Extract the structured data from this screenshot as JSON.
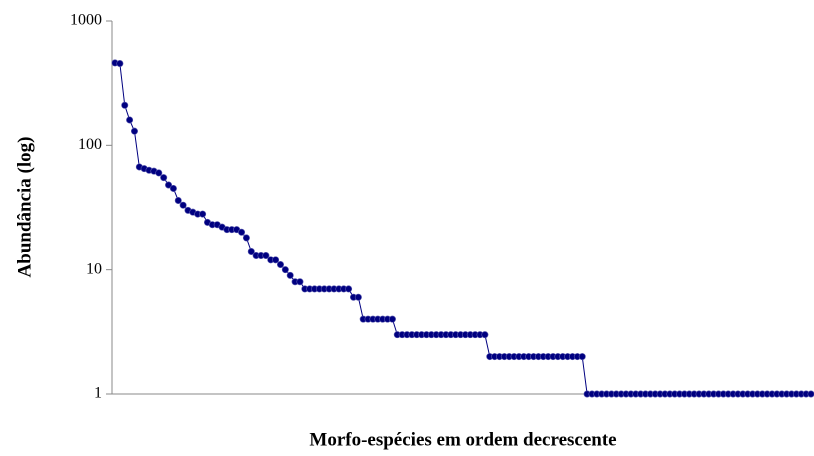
{
  "chart_data": {
    "type": "line",
    "y_label": "Abundância (log)",
    "x_label": "Morfo-espécies em ordem decrescente",
    "log_y": true,
    "ylim": [
      1,
      1000
    ],
    "yticks": [
      1,
      10,
      100,
      1000
    ],
    "grid": false,
    "categories": [
      null,
      null,
      null,
      null,
      null,
      null,
      null,
      null,
      null,
      null,
      null,
      null,
      null,
      null,
      null,
      null,
      null,
      null,
      null,
      null,
      null,
      null,
      null,
      null,
      null,
      null,
      null,
      null,
      null,
      null,
      null,
      null,
      null,
      null,
      null,
      null,
      null,
      null,
      null,
      null,
      null,
      null,
      null,
      null,
      null,
      null,
      null,
      null,
      null,
      null,
      null,
      null,
      null,
      null,
      null,
      null,
      null,
      null,
      null,
      null,
      null,
      null,
      null,
      null,
      null,
      null,
      null,
      null,
      null,
      null,
      null,
      null,
      null,
      null,
      null,
      null,
      null,
      null,
      null,
      null,
      null,
      null,
      null,
      null,
      null,
      null,
      null,
      null,
      null,
      null,
      null,
      null,
      null,
      null,
      null,
      null,
      null,
      null,
      null,
      null,
      null,
      null,
      null,
      null,
      null,
      null,
      null,
      null,
      null,
      null,
      null,
      null,
      null,
      null,
      null,
      null,
      null,
      null,
      null,
      null,
      null,
      null,
      null,
      null,
      null,
      null,
      null,
      null,
      null,
      null,
      null,
      null,
      null,
      null,
      null,
      null,
      null,
      null,
      null,
      null,
      null,
      null,
      null,
      null
    ],
    "series": [
      {
        "color": "#000080",
        "values": [
          460,
          455,
          210,
          160,
          130,
          67,
          65,
          63,
          62,
          60,
          55,
          48,
          45,
          36,
          33,
          30,
          29,
          28,
          28,
          24,
          23,
          23,
          22,
          21,
          21,
          21,
          20,
          18,
          14,
          13,
          13,
          13,
          12,
          12,
          11,
          10,
          9,
          8,
          8,
          7,
          7,
          7,
          7,
          7,
          7,
          7,
          7,
          7,
          7,
          6,
          6,
          4,
          4,
          4,
          4,
          4,
          4,
          4,
          3,
          3,
          3,
          3,
          3,
          3,
          3,
          3,
          3,
          3,
          3,
          3,
          3,
          3,
          3,
          3,
          3,
          3,
          3,
          2,
          2,
          2,
          2,
          2,
          2,
          2,
          2,
          2,
          2,
          2,
          2,
          2,
          2,
          2,
          2,
          2,
          2,
          2,
          2,
          1,
          1,
          1,
          1,
          1,
          1,
          1,
          1,
          1,
          1,
          1,
          1,
          1,
          1,
          1,
          1,
          1,
          1,
          1,
          1,
          1,
          1,
          1,
          1,
          1,
          1,
          1,
          1,
          1,
          1,
          1,
          1,
          1,
          1,
          1,
          1,
          1,
          1,
          1,
          1,
          1,
          1,
          1,
          1,
          1,
          1,
          1
        ]
      }
    ]
  }
}
